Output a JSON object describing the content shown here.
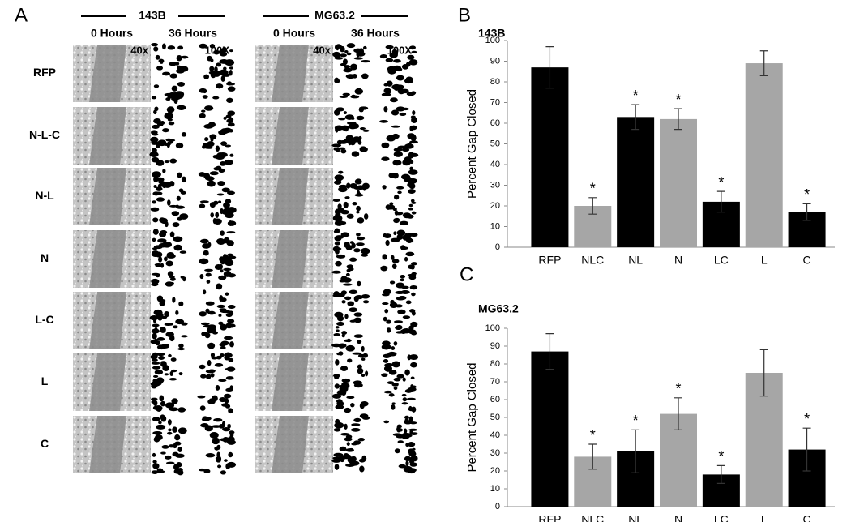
{
  "panel_a": {
    "label": "A",
    "groups": [
      {
        "name": "143B",
        "times": [
          "0 Hours",
          "36 Hours"
        ],
        "magnifications": [
          "40x",
          "100X"
        ]
      },
      {
        "name": "MG63.2",
        "times": [
          "0 Hours",
          "36 Hours"
        ],
        "magnifications": [
          "40x",
          "100X"
        ]
      }
    ],
    "rows": [
      "RFP",
      "N-L-C",
      "N-L",
      "N",
      "L-C",
      "L",
      "C"
    ]
  },
  "chart_data": [
    {
      "type": "bar",
      "panel": "B",
      "title": "143B",
      "ylabel": "Percent Gap Closed",
      "categories": [
        "RFP",
        "NLC",
        "NL",
        "N",
        "LC",
        "L",
        "C"
      ],
      "values": [
        87,
        20,
        63,
        62,
        22,
        89,
        17
      ],
      "errors": [
        10,
        4,
        6,
        5,
        5,
        6,
        4
      ],
      "colors": [
        "#000000",
        "#a6a6a6",
        "#000000",
        "#a6a6a6",
        "#000000",
        "#a6a6a6",
        "#000000"
      ],
      "annotations": [
        {
          "category": "NLC",
          "text": "*"
        },
        {
          "category": "NL",
          "text": "*"
        },
        {
          "category": "N",
          "text": "*"
        },
        {
          "category": "LC",
          "text": "*"
        },
        {
          "category": "C",
          "text": "*"
        }
      ],
      "ylim": [
        0,
        100
      ],
      "yticks": [
        0,
        10,
        20,
        30,
        40,
        50,
        60,
        70,
        80,
        90,
        100
      ]
    },
    {
      "type": "bar",
      "panel": "C",
      "title": "MG63.2",
      "ylabel": "Percent Gap Closed",
      "categories": [
        "RFP",
        "NLC",
        "NL",
        "N",
        "LC",
        "L",
        "C"
      ],
      "values": [
        87,
        28,
        31,
        52,
        18,
        75,
        32
      ],
      "errors": [
        10,
        7,
        12,
        9,
        5,
        13,
        12
      ],
      "colors": [
        "#000000",
        "#a6a6a6",
        "#000000",
        "#a6a6a6",
        "#000000",
        "#a6a6a6",
        "#000000"
      ],
      "annotations": [
        {
          "category": "NLC",
          "text": "*"
        },
        {
          "category": "NL",
          "text": "*"
        },
        {
          "category": "N",
          "text": "*"
        },
        {
          "category": "LC",
          "text": "*"
        },
        {
          "category": "C",
          "text": "*"
        }
      ],
      "ylim": [
        0,
        100
      ],
      "yticks": [
        0,
        10,
        20,
        30,
        40,
        50,
        60,
        70,
        80,
        90,
        100
      ]
    }
  ]
}
